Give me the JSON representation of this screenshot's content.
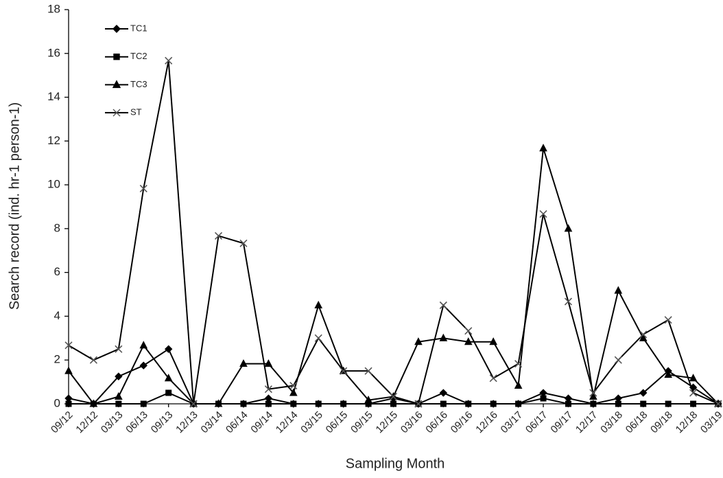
{
  "chart_data": {
    "type": "line",
    "x_label": "Sampling Month",
    "y_label": "Search record (ind. hr-1 person-1)",
    "categories": [
      "09/12",
      "12/12",
      "03/13",
      "06/13",
      "09/13",
      "12/13",
      "03/14",
      "06/14",
      "09/14",
      "12/14",
      "03/15",
      "06/15",
      "09/15",
      "12/15",
      "03/16",
      "06/16",
      "09/16",
      "12/16",
      "03/17",
      "06/17",
      "09/17",
      "12/17",
      "03/18",
      "06/18",
      "09/18",
      "12/18",
      "03/19"
    ],
    "series": [
      {
        "name": "TC1",
        "color": "#000000",
        "marker": "diamond",
        "values": [
          0.25,
          0,
          1.25,
          1.75,
          2.5,
          0,
          0,
          0,
          0.25,
          0,
          0,
          0,
          0,
          0.25,
          0,
          0.5,
          0,
          0,
          0,
          0.5,
          0.25,
          0,
          0.25,
          0.5,
          1.5,
          0.75,
          0
        ]
      },
      {
        "name": "TC2",
        "color": "#000000",
        "marker": "square",
        "values": [
          0,
          0,
          0,
          0,
          0.5,
          0,
          0,
          0,
          0,
          0,
          0,
          0,
          0,
          0,
          0,
          0,
          0,
          0,
          0,
          0.25,
          0,
          0,
          0,
          0,
          0,
          0,
          0
        ]
      },
      {
        "name": "TC3",
        "color": "#000000",
        "marker": "triangle",
        "values": [
          1.5,
          0,
          0.33,
          2.67,
          1.17,
          0,
          0,
          1.83,
          1.83,
          0.5,
          4.5,
          1.5,
          0.17,
          0.33,
          2.83,
          3.0,
          2.83,
          2.83,
          0.83,
          11.67,
          8.0,
          0.33,
          5.17,
          3.0,
          1.33,
          1.17,
          0
        ]
      },
      {
        "name": "ST",
        "color": "#555555",
        "marker": "cross",
        "values": [
          2.67,
          2.0,
          2.5,
          9.83,
          15.67,
          0,
          7.67,
          7.33,
          0.67,
          0.83,
          3.0,
          1.5,
          1.5,
          0.33,
          0,
          4.5,
          3.33,
          1.17,
          1.83,
          8.67,
          4.67,
          0.5,
          2.0,
          3.17,
          3.83,
          0.5,
          0
        ]
      }
    ],
    "ylim": [
      0,
      18
    ],
    "yticks": [
      0,
      2,
      4,
      6,
      8,
      10,
      12,
      14,
      16,
      18
    ],
    "grid": false
  }
}
